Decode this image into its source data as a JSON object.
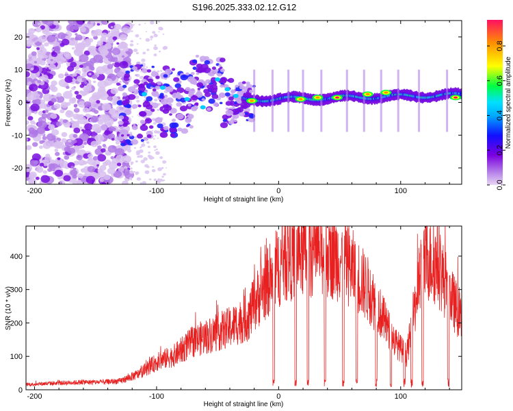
{
  "title": "S196.2025.333.02.12.G12",
  "chart_data": [
    {
      "type": "heatmap",
      "panel": "spectrogram",
      "xlabel": "Height of straight line (km)",
      "ylabel": "Frequency (Hz)",
      "xlim": [
        -207,
        150
      ],
      "ylim": [
        -25,
        25
      ],
      "xticks": [
        -200,
        -100,
        0,
        100
      ],
      "yticks": [
        -20,
        -10,
        0,
        10,
        20
      ],
      "colorbar": {
        "label": "Normalized spectral amplitude",
        "range": [
          0,
          0.95
        ],
        "ticks": [
          0.0,
          0.2,
          0.4,
          0.6,
          0.8
        ],
        "tick_labels": [
          "0.0",
          "0.2",
          "0.4",
          "0.6",
          "0.8"
        ],
        "colors": [
          "#e8d6f4",
          "#7b00e0",
          "#1010ff",
          "#00e0ff",
          "#00ff40",
          "#ffff00",
          "#ff9000",
          "#ff1060"
        ]
      },
      "features": [
        {
          "x": -22,
          "y": 0.5,
          "amp": 0.8
        },
        {
          "x": 18,
          "y": 1.0,
          "amp": 0.75
        },
        {
          "x": 32,
          "y": 1.5,
          "amp": 0.85
        },
        {
          "x": 48,
          "y": 1.5,
          "amp": 0.9
        },
        {
          "x": 73,
          "y": 2.5,
          "amp": 0.85
        },
        {
          "x": 88,
          "y": 3.0,
          "amp": 0.8
        },
        {
          "x": 145,
          "y": 1.5,
          "amp": 0.9
        }
      ]
    },
    {
      "type": "line",
      "panel": "snr",
      "xlabel": "Height of straight line (km)",
      "ylabel": "SNR (10 * v/v)",
      "xlim": [
        -207,
        150
      ],
      "ylim": [
        0,
        490
      ],
      "xticks": [
        -200,
        -100,
        0,
        100
      ],
      "yticks": [
        0,
        100,
        200,
        300,
        400
      ],
      "series": [
        {
          "name": "SNR",
          "color": "#e82020",
          "x": [
            -207,
            -190,
            -175,
            -160,
            -145,
            -130,
            -115,
            -100,
            -85,
            -70,
            -55,
            -40,
            -25,
            -15,
            -5,
            5,
            15,
            25,
            35,
            45,
            55,
            65,
            75,
            85,
            95,
            105,
            115,
            122,
            130,
            140,
            150
          ],
          "values": [
            15,
            18,
            20,
            22,
            22,
            25,
            45,
            80,
            100,
            140,
            160,
            180,
            210,
            280,
            330,
            380,
            390,
            400,
            400,
            390,
            370,
            330,
            280,
            210,
            140,
            100,
            310,
            380,
            360,
            280,
            200
          ],
          "dropouts": [
            -4,
            14,
            24,
            38,
            53,
            64,
            80,
            92,
            103,
            109,
            118,
            139
          ]
        }
      ]
    }
  ]
}
